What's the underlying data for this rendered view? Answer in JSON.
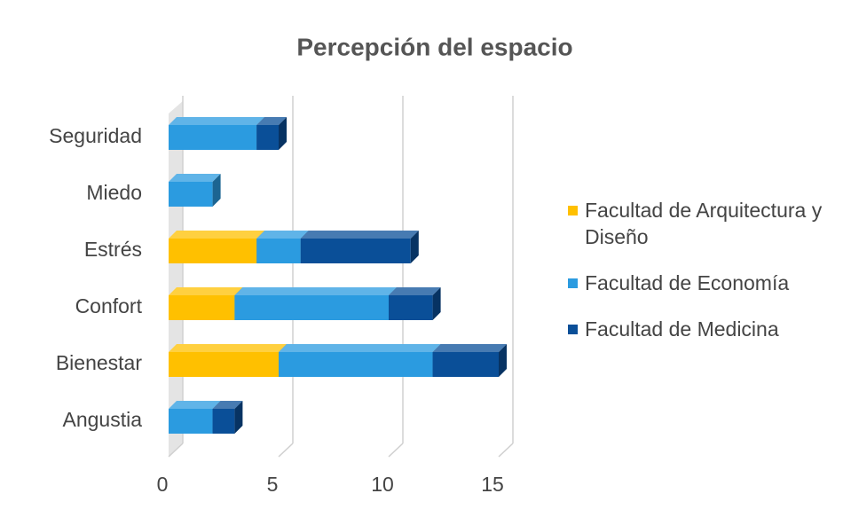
{
  "chart_data": {
    "type": "bar",
    "orientation": "horizontal",
    "stacked": true,
    "title": "Percepción del espacio",
    "categories": [
      "Seguridad",
      "Miedo",
      "Estrés",
      "Confort",
      "Bienestar",
      "Angustia"
    ],
    "series": [
      {
        "name": "Facultad de Arquitectura y Diseño",
        "color": "#ffc000",
        "values": [
          0,
          0,
          4,
          3,
          5,
          0
        ]
      },
      {
        "name": "Facultad de Economía",
        "color": "#2b9be0",
        "values": [
          4,
          2,
          2,
          7,
          7,
          2
        ]
      },
      {
        "name": "Facultad de Medicina",
        "color": "#0a4f98",
        "values": [
          1,
          0,
          5,
          2,
          3,
          1
        ]
      }
    ],
    "xlim": [
      0,
      15
    ],
    "xticks": [
      0,
      5,
      10,
      15
    ],
    "grid": true,
    "legend": "right"
  }
}
